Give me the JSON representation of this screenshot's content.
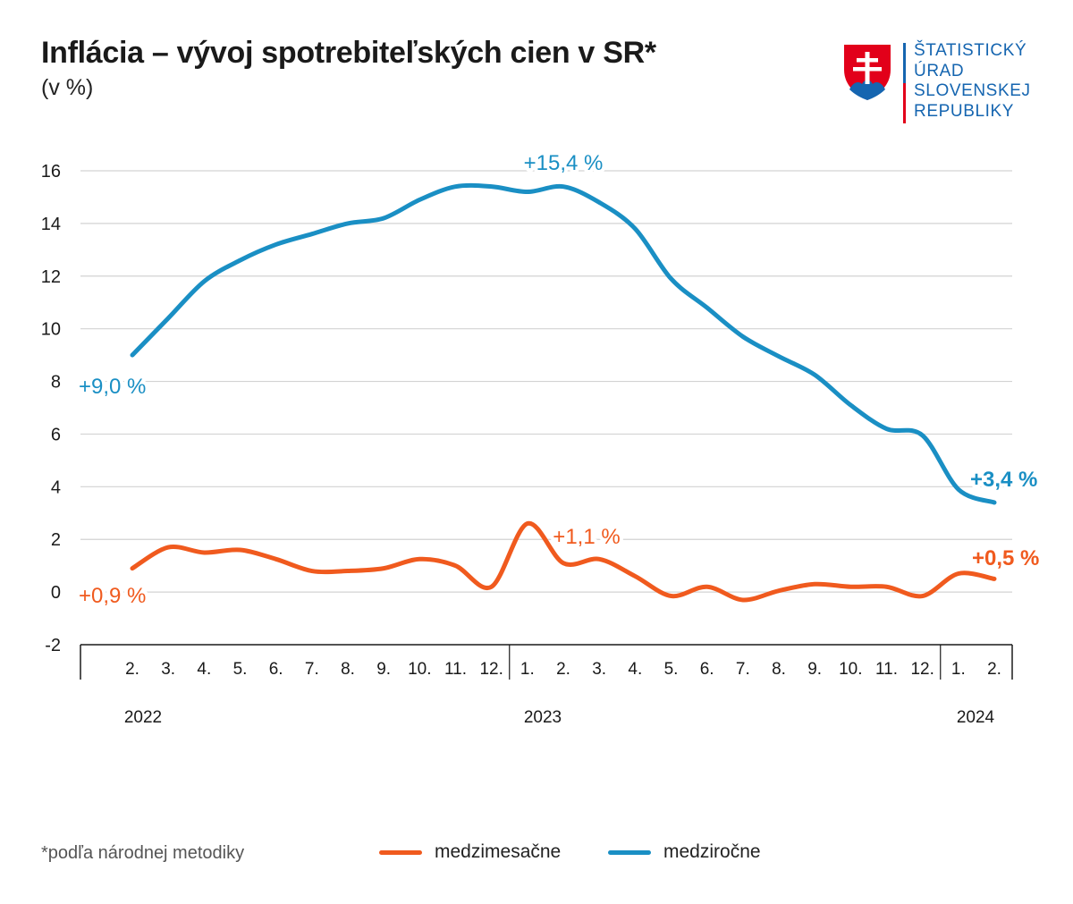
{
  "header": {
    "title": "Inflácia – vývoj spotrebiteľských cien v SR*",
    "subtitle": "(v %)"
  },
  "logo": {
    "lines": [
      "ŠTATISTICKÝ",
      "ÚRAD",
      "SLOVENSKEJ",
      "REPUBLIKY"
    ],
    "icon": "slovak-coat-of-arms-icon",
    "colors": {
      "red": "#e2001a",
      "blue": "#1565b0",
      "white": "#ffffff"
    }
  },
  "footnote": "*podľa národnej metodiky",
  "chart_data": {
    "type": "line",
    "title": "Inflácia – vývoj spotrebiteľských cien v SR*",
    "subtitle": "(v %)",
    "ylim": [
      -2,
      16
    ],
    "yticks": [
      "-2",
      "0",
      "2",
      "4",
      "6",
      "8",
      "10",
      "12",
      "14",
      "16"
    ],
    "grid": true,
    "legend_placement": "bottom",
    "categories": [
      "2.",
      "3.",
      "4.",
      "5.",
      "6.",
      "7.",
      "8.",
      "9.",
      "10.",
      "11.",
      "12.",
      "1.",
      "2.",
      "3.",
      "4.",
      "5.",
      "6.",
      "7.",
      "8.",
      "9.",
      "10.",
      "11.",
      "12.",
      "1.",
      "2."
    ],
    "years": [
      {
        "label": "2022",
        "start_index": 0
      },
      {
        "label": "2023",
        "start_index": 11
      },
      {
        "label": "2024",
        "start_index": 23
      }
    ],
    "series": [
      {
        "name": "medzimesačne",
        "color": "#f05a1e",
        "values": [
          0.9,
          1.7,
          1.5,
          1.6,
          1.25,
          0.8,
          0.8,
          0.9,
          1.25,
          1.0,
          0.2,
          2.6,
          1.1,
          1.25,
          0.6,
          -0.15,
          0.2,
          -0.3,
          0.05,
          0.3,
          0.2,
          0.2,
          -0.15,
          0.7,
          0.5
        ]
      },
      {
        "name": "medziročne",
        "color": "#1a8fc4",
        "values": [
          9.0,
          10.4,
          11.8,
          12.6,
          13.2,
          13.6,
          14.0,
          14.2,
          14.9,
          15.4,
          15.4,
          15.2,
          15.4,
          14.8,
          13.8,
          11.9,
          10.8,
          9.7,
          8.95,
          8.25,
          7.1,
          6.2,
          5.95,
          3.9,
          3.4
        ]
      }
    ],
    "annotations": [
      {
        "text": "+9,0 %",
        "series": "medziročne",
        "index": 0,
        "bold": false
      },
      {
        "text": "+15,4 %",
        "series": "medziročne",
        "index": 12,
        "bold": false
      },
      {
        "text": "+3,4 %",
        "series": "medziročne",
        "index": 24,
        "bold": true
      },
      {
        "text": "+0,9 %",
        "series": "medzimesačne",
        "index": 0,
        "bold": false
      },
      {
        "text": "+1,1 %",
        "series": "medzimesačne",
        "index": 12,
        "bold": false
      },
      {
        "text": "+0,5 %",
        "series": "medzimesačne",
        "index": 24,
        "bold": true
      }
    ]
  }
}
